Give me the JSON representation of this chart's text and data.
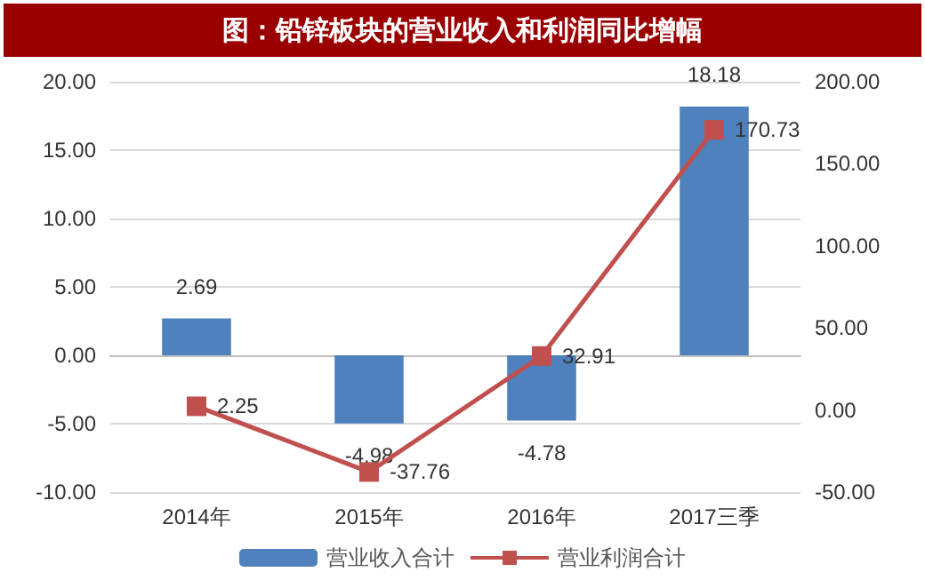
{
  "chart_data": {
    "type": "bar",
    "title": "图：铅锌板块的营业收入和利润同比增幅",
    "categories": [
      "2014年",
      "2015年",
      "2016年",
      "2017三季"
    ],
    "series": [
      {
        "name": "营业收入合计",
        "color": "#4f81bd",
        "values": [
          2.69,
          -4.98,
          -4.78,
          18.18
        ]
      },
      {
        "name": "营业利润合计",
        "type": "line",
        "axis": "y2",
        "color": "#c0504d",
        "values": [
          2.25,
          -37.76,
          32.91,
          170.73
        ]
      }
    ],
    "ylim": [
      -10,
      20
    ],
    "yticks": [
      {
        "value": -10,
        "label": "-10.00"
      },
      {
        "value": -5,
        "label": "-5.00"
      },
      {
        "value": 0,
        "label": "0.00"
      },
      {
        "value": 5,
        "label": "5.00"
      },
      {
        "value": 10,
        "label": "10.00"
      },
      {
        "value": 15,
        "label": "15.00"
      },
      {
        "value": 20,
        "label": "20.00"
      }
    ],
    "y2lim": [
      -50,
      200
    ],
    "y2ticks": [
      {
        "value": -50,
        "label": "-50.00"
      },
      {
        "value": 0,
        "label": "0.00"
      },
      {
        "value": 50,
        "label": "50.00"
      },
      {
        "value": 100,
        "label": "100.00"
      },
      {
        "value": 150,
        "label": "150.00"
      },
      {
        "value": 200,
        "label": "200.00"
      }
    ],
    "data_labels": true,
    "grid": "y",
    "legend": "bottom",
    "marker": "square"
  }
}
